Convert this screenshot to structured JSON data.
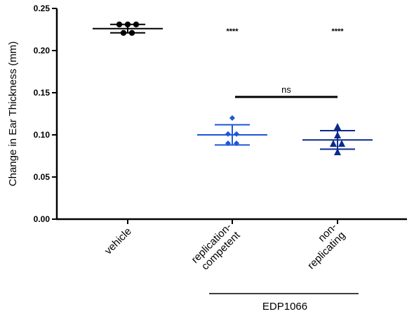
{
  "chart_data": {
    "type": "scatter",
    "ylabel": "Change in Ear Thickness (mm)",
    "xlabel": "",
    "ylim": [
      0,
      0.25
    ],
    "yticks": [
      0.0,
      0.05,
      0.1,
      0.15,
      0.2,
      0.25
    ],
    "ytick_labels": [
      "0.00",
      "0.05",
      "0.10",
      "0.15",
      "0.20",
      "0.25"
    ],
    "groups": [
      {
        "label_lines": [
          "vehicle"
        ],
        "marker": "circle",
        "color": "#000000",
        "points": [
          0.231,
          0.231,
          0.231,
          0.221,
          0.221
        ],
        "mean": 0.226,
        "sd_upper": 0.231,
        "sd_lower": 0.221,
        "annotation": ""
      },
      {
        "label_lines": [
          "replication-",
          "competent"
        ],
        "marker": "diamond",
        "color": "#1f57d6",
        "points": [
          0.12,
          0.101,
          0.101,
          0.09,
          0.09
        ],
        "mean": 0.1,
        "sd_upper": 0.112,
        "sd_lower": 0.088,
        "annotation": "****"
      },
      {
        "label_lines": [
          "non-",
          "replicating"
        ],
        "marker": "triangle",
        "color": "#0a2a8c",
        "points": [
          0.11,
          0.1,
          0.09,
          0.09,
          0.08
        ],
        "mean": 0.094,
        "sd_upper": 0.105,
        "sd_lower": 0.083,
        "annotation": "****"
      }
    ],
    "comparison": {
      "from_group": 1,
      "to_group": 2,
      "y": 0.145,
      "label": "ns"
    },
    "group_bracket": {
      "from_group": 1,
      "to_group": 2,
      "label": "EDP1066"
    }
  }
}
